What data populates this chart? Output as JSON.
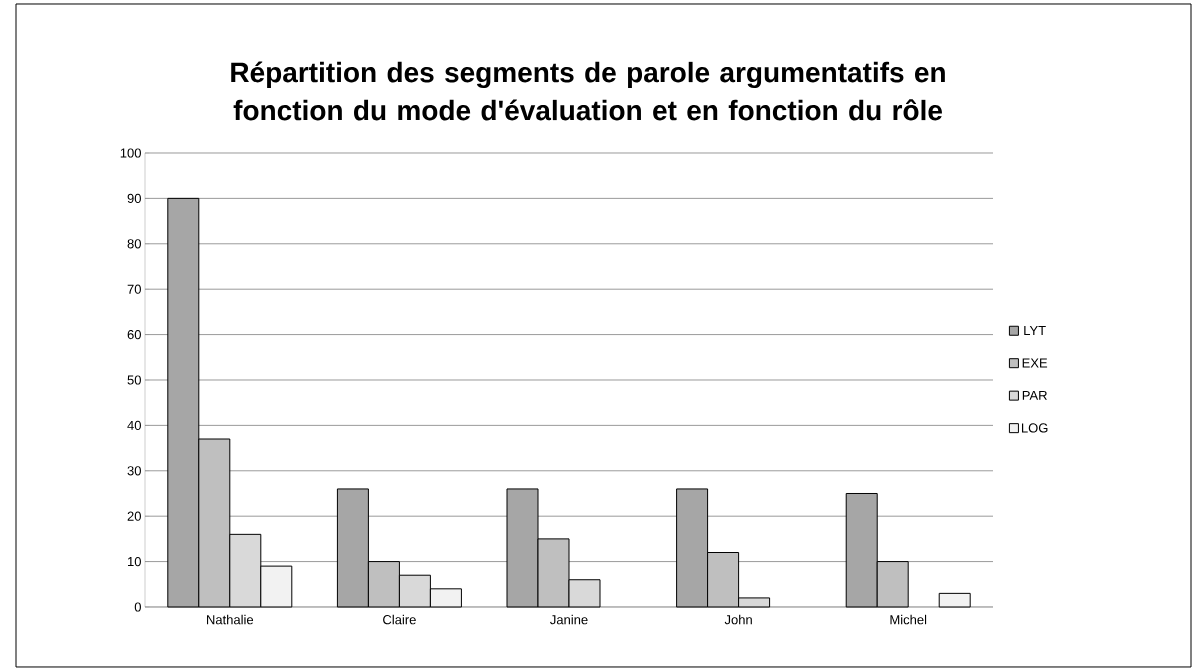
{
  "chart_data": {
    "type": "bar",
    "title": "Répartition des segments de parole argumentatifs en fonction du mode d'évaluation et en fonction du rôle",
    "categories": [
      "Nathalie",
      "Claire",
      "Janine",
      "John",
      "Michel"
    ],
    "series": [
      {
        "name": "LYT",
        "color": "#a6a6a6",
        "values": [
          90,
          26,
          26,
          26,
          25
        ]
      },
      {
        "name": "EXE",
        "color": "#bfbfbf",
        "values": [
          37,
          10,
          15,
          12,
          10
        ]
      },
      {
        "name": "PAR",
        "color": "#d9d9d9",
        "values": [
          16,
          7,
          6,
          2,
          null
        ]
      },
      {
        "name": "LOG",
        "color": "#f2f2f2",
        "values": [
          9,
          4,
          null,
          null,
          3
        ]
      }
    ],
    "ylim": [
      0,
      100
    ],
    "yticks": [
      0,
      10,
      20,
      30,
      40,
      50,
      60,
      70,
      80,
      90,
      100
    ],
    "grid": "y",
    "legend": "right"
  }
}
